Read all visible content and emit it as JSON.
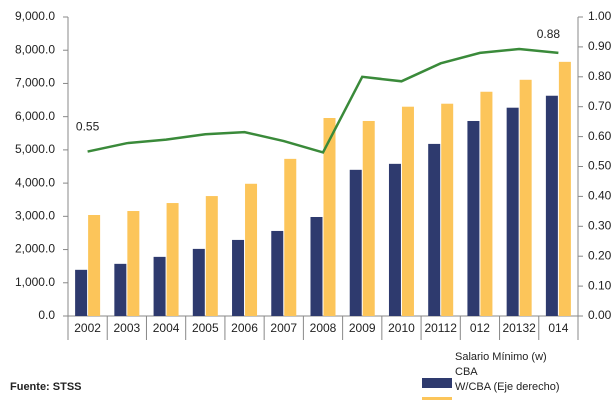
{
  "chart_data": {
    "type": "bar",
    "source": "Fuente: STSS",
    "categories": [
      "2002",
      "2003",
      "2004",
      "2005",
      "2006",
      "2007",
      "2008",
      "2009",
      "2010",
      "20112",
      "012",
      "20132",
      "014"
    ],
    "series": [
      {
        "name": "Salario Mínimo (w)",
        "color": "#2e3a6e",
        "values": [
          1390,
          1570,
          1780,
          2020,
          2290,
          2560,
          2980,
          4400,
          4580,
          5180,
          5870,
          6270,
          6630
        ]
      },
      {
        "name": "CBA",
        "color": "#fcc55a",
        "values": [
          3040,
          3160,
          3400,
          3610,
          3980,
          4730,
          5960,
          5870,
          6300,
          6390,
          6750,
          7110,
          7650
        ]
      },
      {
        "name": "W/CBA (Eje derecho)",
        "color": "#3a8a3a",
        "type": "line",
        "axis": "y2",
        "values": [
          0.55,
          0.578,
          0.59,
          0.608,
          0.615,
          0.585,
          0.547,
          0.8,
          0.785,
          0.845,
          0.88,
          0.893,
          0.88
        ]
      }
    ],
    "ylim": [
      0,
      9000
    ],
    "yticks": [
      {
        "value": 0,
        "label": "0.0"
      },
      {
        "value": 1000,
        "label": "1,000.0"
      },
      {
        "value": 2000,
        "label": "2,000.0"
      },
      {
        "value": 3000,
        "label": "3,000.0"
      },
      {
        "value": 4000,
        "label": "4,000.0"
      },
      {
        "value": 5000,
        "label": "5,000.0"
      },
      {
        "value": 6000,
        "label": "6,000.0"
      },
      {
        "value": 7000,
        "label": "7,000.0"
      },
      {
        "value": 8000,
        "label": "8,000.0"
      },
      {
        "value": 9000,
        "label": "9,000.0"
      }
    ],
    "y2lim": [
      0,
      1
    ],
    "y2ticks": [
      {
        "value": 0,
        "label": "0.00"
      },
      {
        "value": 0.1,
        "label": "0.10"
      },
      {
        "value": 0.2,
        "label": "0.20"
      },
      {
        "value": 0.3,
        "label": "0.30"
      },
      {
        "value": 0.4,
        "label": "0.40"
      },
      {
        "value": 0.5,
        "label": "0.50"
      },
      {
        "value": 0.6,
        "label": "0.60"
      },
      {
        "value": 0.7,
        "label": "0.70"
      },
      {
        "value": 0.8,
        "label": "0.80"
      },
      {
        "value": 0.9,
        "label": "0.90"
      },
      {
        "value": 1,
        "label": "1.00"
      }
    ]
  }
}
